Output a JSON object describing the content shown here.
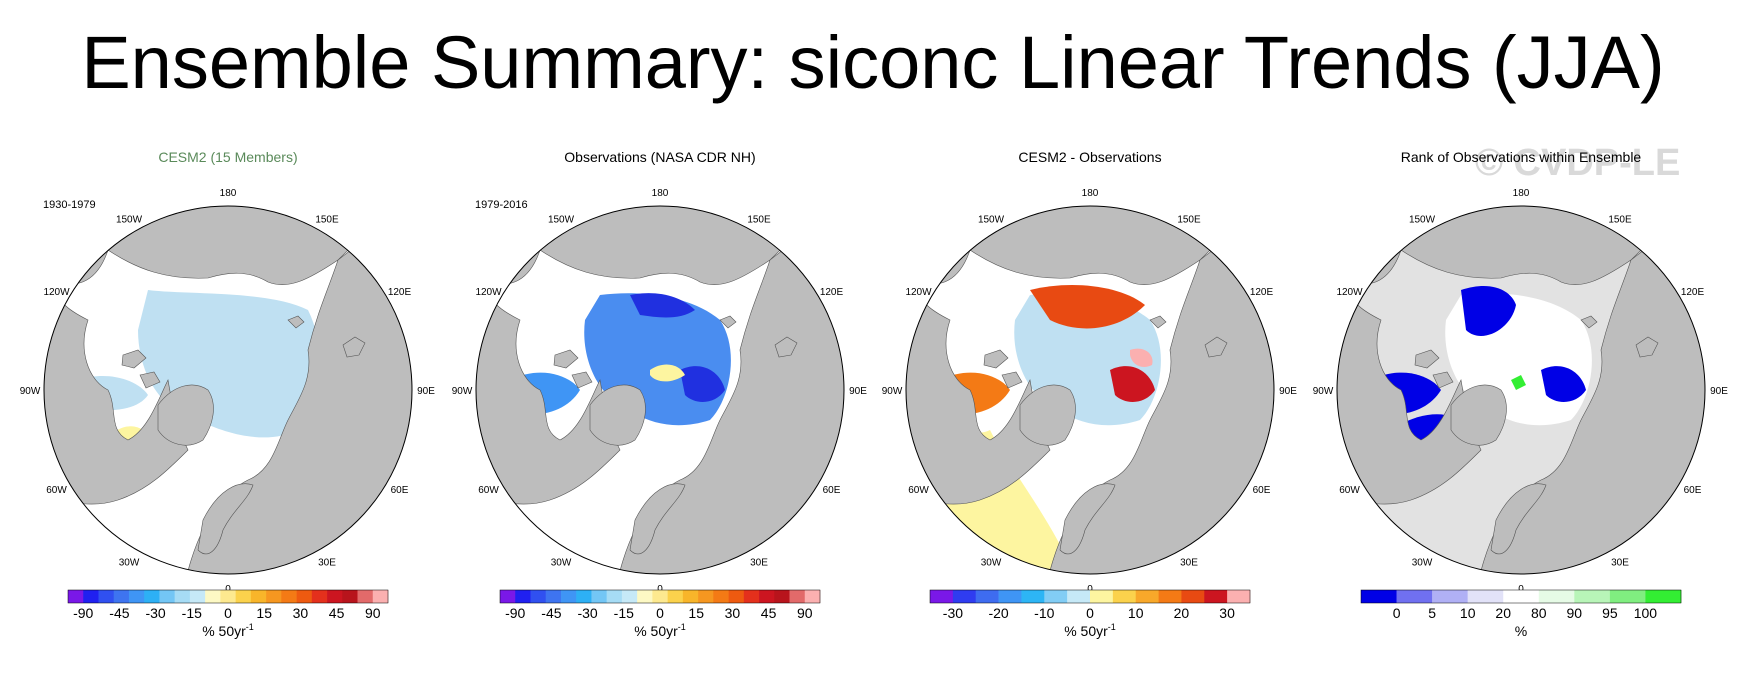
{
  "figure": {
    "title": "Ensemble Summary: siconc Linear Trends (JJA)",
    "watermark": "© CVDP-LE"
  },
  "colors": {
    "land": "#bdbdbd",
    "ocean": "#ffffff",
    "light_blue": "#bfe0f2",
    "pale_yellow": "#fdf5a0",
    "deep_blue": "#0000e6",
    "green": "#33ee33",
    "light_gray": "#e2e2e2"
  },
  "panels": [
    {
      "title": "CESM2 (15 Members)",
      "title_color": "#5a8a5a",
      "period": "1930-1979",
      "lon_labels": [
        "180",
        "150E",
        "120E",
        "90E",
        "60E",
        "30E",
        "0",
        "30W",
        "60W",
        "90W",
        "120W",
        "150W"
      ],
      "colorbar": {
        "colors": [
          "#7a18e8",
          "#2020f0",
          "#3050f0",
          "#3e74f0",
          "#3f95f5",
          "#2db0f5",
          "#73c6f5",
          "#a6dcf5",
          "#c6e9f7",
          "#fdf9c4",
          "#fde98f",
          "#fbd24c",
          "#f8b52a",
          "#f69720",
          "#f47a15",
          "#ee5a10",
          "#e4301c",
          "#cc1520",
          "#b8141c",
          "#e26a6a",
          "#fbb0b0"
        ],
        "tick_labels": [
          "-90",
          "-45",
          "-30",
          "-15",
          "0",
          "15",
          "30",
          "45",
          "90"
        ],
        "units": "% 50yr",
        "units_sup": "-1"
      }
    },
    {
      "title": "Observations (NASA CDR NH)",
      "title_color": "#000000",
      "period": "1979-2016",
      "lon_labels": [
        "180",
        "150E",
        "120E",
        "90E",
        "60E",
        "30E",
        "0",
        "30W",
        "60W",
        "90W",
        "120W",
        "150W"
      ],
      "colorbar": {
        "colors": [
          "#7a18e8",
          "#2020f0",
          "#3050f0",
          "#3e74f0",
          "#3f95f5",
          "#2db0f5",
          "#73c6f5",
          "#a6dcf5",
          "#c6e9f7",
          "#fdf9c4",
          "#fde98f",
          "#fbd24c",
          "#f8b52a",
          "#f69720",
          "#f47a15",
          "#ee5a10",
          "#e4301c",
          "#cc1520",
          "#b8141c",
          "#e26a6a",
          "#fbb0b0"
        ],
        "tick_labels": [
          "-90",
          "-45",
          "-30",
          "-15",
          "0",
          "15",
          "30",
          "45",
          "90"
        ],
        "units": "% 50yr",
        "units_sup": "-1"
      }
    },
    {
      "title": "CESM2 - Observations",
      "title_color": "#000000",
      "period": "",
      "lon_labels": [
        "180",
        "150E",
        "120E",
        "90E",
        "60E",
        "30E",
        "0",
        "30W",
        "60W",
        "90W",
        "120W",
        "150W"
      ],
      "colorbar": {
        "colors": [
          "#7a18e8",
          "#2f3cf0",
          "#3e6cf0",
          "#3f95f5",
          "#2db5f5",
          "#82cdf5",
          "#c6e9f7",
          "#fdf5a0",
          "#fbd24c",
          "#f8a82a",
          "#f47a15",
          "#e84a12",
          "#cc1520",
          "#fbb0b0"
        ],
        "tick_labels": [
          "-30",
          "-20",
          "-10",
          "0",
          "10",
          "20",
          "30"
        ],
        "units": "% 50yr",
        "units_sup": "-1"
      }
    },
    {
      "title": "Rank of Observations within Ensemble",
      "title_color": "#000000",
      "period": "",
      "lon_labels": [
        "180",
        "150E",
        "120E",
        "90E",
        "60E",
        "30E",
        "0",
        "30W",
        "60W",
        "90W",
        "120W",
        "150W"
      ],
      "colorbar": {
        "colors": [
          "#0000e6",
          "#7070f0",
          "#b0b0f5",
          "#e2e2f8",
          "#ffffff",
          "#e6fbe6",
          "#b8f5b8",
          "#80ee80",
          "#33ee33"
        ],
        "tick_labels": [
          "0",
          "5",
          "10",
          "20",
          "80",
          "90",
          "95",
          "100"
        ],
        "units": "%",
        "units_sup": ""
      }
    }
  ]
}
